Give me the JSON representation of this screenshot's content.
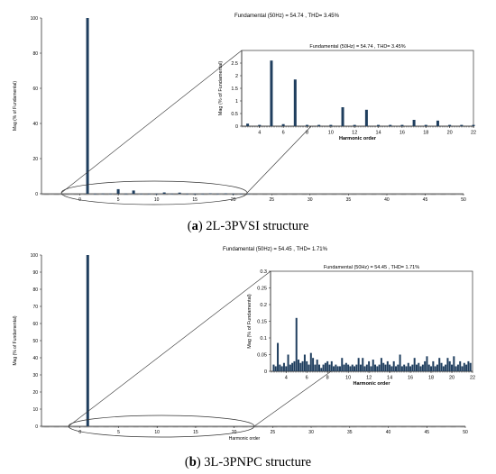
{
  "colors": {
    "bar": "#1f3e5e",
    "axis": "#333333",
    "text": "#000000"
  },
  "captions": [
    {
      "label": "a",
      "text": "2L-3PVSI structure"
    },
    {
      "label": "b",
      "text": "3L-3PNPC structure"
    }
  ],
  "chart_data": [
    {
      "type": "bar",
      "title": "Fundamental (50Hz) = 54.74 , THD= 3.45%",
      "xlabel": "",
      "ylabel": "Mag (% of Fundamental)",
      "xlim": [
        -5,
        50
      ],
      "ylim": [
        0,
        100
      ],
      "xticks": [
        0,
        5,
        10,
        15,
        20,
        25,
        30,
        35,
        40,
        45,
        50
      ],
      "yticks": [
        0,
        20,
        40,
        60,
        80,
        100
      ],
      "x": [
        1,
        2,
        3,
        4,
        5,
        6,
        7,
        8,
        9,
        10,
        11,
        12,
        13,
        14,
        15,
        16,
        17,
        18,
        19,
        20,
        21,
        22
      ],
      "values": [
        100,
        0.05,
        0.1,
        0.05,
        2.6,
        0.08,
        1.85,
        0.05,
        0.05,
        0.05,
        0.75,
        0.05,
        0.65,
        0.05,
        0.05,
        0.05,
        0.25,
        0.05,
        0.22,
        0.05,
        0.05,
        0.05
      ],
      "inset": {
        "title": "Fundamental (50Hz) = 54.74 , THD= 3.45%",
        "xlabel": "Harmonic order",
        "ylabel": "Mag (% of Fundamental)",
        "xlim": [
          2.5,
          22
        ],
        "ylim": [
          0,
          3
        ],
        "xticks": [
          4,
          6,
          8,
          10,
          12,
          14,
          16,
          18,
          20,
          22
        ],
        "yticks": [
          0,
          0.5,
          1,
          1.5,
          2,
          2.5
        ],
        "x": [
          3,
          4,
          5,
          6,
          7,
          8,
          9,
          10,
          11,
          12,
          13,
          14,
          15,
          16,
          17,
          18,
          19,
          20,
          21,
          22
        ],
        "values": [
          0.1,
          0.05,
          2.6,
          0.08,
          1.85,
          0.05,
          0.05,
          0.05,
          0.75,
          0.05,
          0.65,
          0.05,
          0.05,
          0.05,
          0.25,
          0.05,
          0.22,
          0.05,
          0.05,
          0.05
        ]
      }
    },
    {
      "type": "bar",
      "title": "Fundamental (50Hz) = 54.45 , THD= 1.71%",
      "xlabel": "Harmonic order",
      "ylabel": "Mag (% of Fundamental)",
      "xlim": [
        -5,
        50
      ],
      "ylim": [
        0,
        100
      ],
      "xticks": [
        0,
        5,
        10,
        15,
        20,
        25,
        30,
        35,
        40,
        45,
        50
      ],
      "yticks": [
        0,
        10,
        20,
        30,
        40,
        50,
        60,
        70,
        80,
        90,
        100
      ],
      "x": [
        1
      ],
      "values": [
        100
      ],
      "inset": {
        "title": "Fundamental (50Hz) = 54.45 , THD= 1.71%",
        "xlabel": "Harmonic order",
        "ylabel": "Mag (% of Fundamental)",
        "xlim": [
          2.5,
          22
        ],
        "ylim": [
          0,
          0.3
        ],
        "xticks": [
          4,
          6,
          8,
          10,
          12,
          14,
          16,
          18,
          20,
          22
        ],
        "yticks": [
          0,
          0.05,
          0.1,
          0.15,
          0.2,
          0.25,
          0.3
        ],
        "x": [
          2.8,
          3.0,
          3.2,
          3.4,
          3.6,
          3.8,
          4.0,
          4.2,
          4.4,
          4.6,
          4.8,
          5.0,
          5.2,
          5.4,
          5.6,
          5.8,
          6.0,
          6.2,
          6.4,
          6.6,
          6.8,
          7.0,
          7.2,
          7.4,
          7.6,
          7.8,
          8.0,
          8.2,
          8.4,
          8.6,
          8.8,
          9.0,
          9.2,
          9.4,
          9.6,
          9.8,
          10.0,
          10.2,
          10.4,
          10.6,
          10.8,
          11.0,
          11.2,
          11.4,
          11.6,
          11.8,
          12.0,
          12.2,
          12.4,
          12.6,
          12.8,
          13.0,
          13.2,
          13.4,
          13.6,
          13.8,
          14.0,
          14.2,
          14.4,
          14.6,
          14.8,
          15.0,
          15.2,
          15.4,
          15.6,
          15.8,
          16.0,
          16.2,
          16.4,
          16.6,
          16.8,
          17.0,
          17.2,
          17.4,
          17.6,
          17.8,
          18.0,
          18.2,
          18.4,
          18.6,
          18.8,
          19.0,
          19.2,
          19.4,
          19.6,
          19.8,
          20.0,
          20.2,
          20.4,
          20.6,
          20.8,
          21.0,
          21.2,
          21.4,
          21.6,
          21.8
        ],
        "values": [
          0.02,
          0.015,
          0.085,
          0.02,
          0.015,
          0.025,
          0.015,
          0.05,
          0.02,
          0.025,
          0.03,
          0.16,
          0.035,
          0.025,
          0.03,
          0.05,
          0.03,
          0.02,
          0.055,
          0.04,
          0.02,
          0.035,
          0.02,
          0.01,
          0.02,
          0.025,
          0.03,
          0.02,
          0.03,
          0.015,
          0.02,
          0.015,
          0.015,
          0.04,
          0.02,
          0.025,
          0.02,
          0.015,
          0.02,
          0.015,
          0.02,
          0.04,
          0.02,
          0.04,
          0.015,
          0.02,
          0.03,
          0.015,
          0.035,
          0.02,
          0.015,
          0.02,
          0.04,
          0.025,
          0.02,
          0.03,
          0.02,
          0.015,
          0.03,
          0.015,
          0.02,
          0.05,
          0.015,
          0.02,
          0.015,
          0.025,
          0.015,
          0.02,
          0.04,
          0.02,
          0.025,
          0.015,
          0.02,
          0.03,
          0.045,
          0.02,
          0.015,
          0.03,
          0.015,
          0.02,
          0.04,
          0.025,
          0.015,
          0.02,
          0.04,
          0.03,
          0.02,
          0.045,
          0.015,
          0.02,
          0.03,
          0.015,
          0.025,
          0.02,
          0.03,
          0.025
        ]
      }
    }
  ]
}
